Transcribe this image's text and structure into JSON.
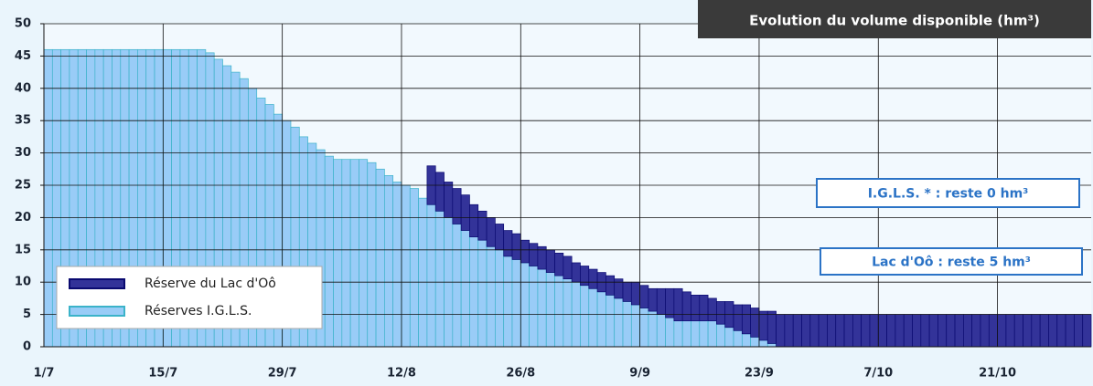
{
  "chart_data": {
    "type": "stacked_bar",
    "title": "Evolution du volume disponible (hm³)",
    "annotations": [
      "I.G.L.S. * : reste 0 hm³",
      "Lac d'Oô : reste 5 hm³"
    ],
    "categories": [
      "1/7",
      null,
      null,
      null,
      null,
      null,
      null,
      null,
      null,
      null,
      null,
      null,
      null,
      null,
      "15/7",
      null,
      null,
      null,
      null,
      null,
      null,
      null,
      null,
      null,
      null,
      null,
      null,
      null,
      "29/7",
      null,
      null,
      null,
      null,
      null,
      null,
      null,
      null,
      null,
      null,
      null,
      null,
      null,
      "12/8",
      null,
      null,
      null,
      null,
      null,
      null,
      null,
      null,
      null,
      null,
      null,
      null,
      null,
      "26/8",
      null,
      null,
      null,
      null,
      null,
      null,
      null,
      null,
      null,
      null,
      null,
      null,
      null,
      "9/9",
      null,
      null,
      null,
      null,
      null,
      null,
      null,
      null,
      null,
      null,
      null,
      null,
      null,
      "23/9",
      null,
      null,
      null,
      null,
      null,
      null,
      null,
      null,
      null,
      null,
      null,
      null,
      null,
      "7/10",
      null,
      null,
      null,
      null,
      null,
      null,
      null,
      null,
      null,
      null,
      null,
      null,
      null,
      "21/10",
      null,
      null,
      null,
      null,
      null,
      null,
      null,
      null,
      null,
      null
    ],
    "series": [
      {
        "name": "Réserves I.G.L.S.",
        "color": "#99ccf7",
        "edge": "#3bb3c9",
        "values": [
          46,
          46,
          46,
          46,
          46,
          46,
          46,
          46,
          46,
          46,
          46,
          46,
          46,
          46,
          46,
          46,
          46,
          46,
          46,
          45.5,
          44.5,
          43.5,
          42.5,
          41.5,
          40,
          38.5,
          37.5,
          36,
          35,
          34,
          32.5,
          31.5,
          30.5,
          29.5,
          29,
          29,
          29,
          29,
          28.5,
          27.5,
          26.5,
          25.5,
          25,
          24.5,
          23,
          22,
          21,
          20,
          19,
          18,
          17,
          16.5,
          15.5,
          15,
          14,
          13.5,
          13,
          12.5,
          12,
          11.5,
          11,
          10.5,
          10,
          9.5,
          9,
          8.5,
          8,
          7.5,
          7,
          6.5,
          6,
          5.5,
          5,
          4.5,
          4,
          4,
          4,
          4,
          4,
          3.5,
          3,
          2.5,
          2,
          1.5,
          1,
          0.5,
          0,
          0,
          0,
          0,
          0,
          0,
          0,
          0,
          0,
          0,
          0,
          0,
          0,
          0,
          0,
          0,
          0,
          0,
          0,
          0,
          0,
          0,
          0,
          0,
          0,
          0,
          0,
          0,
          0,
          0,
          0,
          0,
          0,
          0,
          0,
          0,
          0
        ]
      },
      {
        "name": "Réserve du Lac d'Oô",
        "color": "#333399",
        "edge": "#0a0a70",
        "values": [
          null,
          null,
          null,
          null,
          null,
          null,
          null,
          null,
          null,
          null,
          null,
          null,
          null,
          null,
          null,
          null,
          null,
          null,
          null,
          null,
          null,
          null,
          null,
          null,
          null,
          null,
          null,
          null,
          null,
          null,
          null,
          null,
          null,
          null,
          null,
          null,
          null,
          null,
          null,
          null,
          null,
          null,
          null,
          null,
          null,
          6,
          6,
          5.5,
          5.5,
          5.5,
          5,
          4.5,
          4.5,
          4,
          4,
          4,
          3.5,
          3.5,
          3.5,
          3.5,
          3.5,
          3.5,
          3,
          3,
          3,
          3,
          3,
          3,
          3,
          3.5,
          3.5,
          3.5,
          4,
          4.5,
          5,
          4.5,
          4,
          4,
          3.5,
          3.5,
          4,
          4,
          4.5,
          4.5,
          4.5,
          5,
          5,
          5,
          5,
          5,
          5,
          5,
          5,
          5,
          5,
          5,
          5,
          5,
          5,
          5,
          5,
          5,
          5,
          5,
          5,
          5,
          5,
          5,
          5,
          5,
          5,
          5,
          5,
          5,
          5,
          5,
          5,
          5,
          5,
          5,
          5,
          5,
          5
        ]
      }
    ],
    "ylim": [
      0,
      50
    ],
    "yticks": [
      0,
      5,
      10,
      15,
      20,
      25,
      30,
      35,
      40,
      45,
      50
    ],
    "grid": true,
    "legend": "lower left"
  }
}
